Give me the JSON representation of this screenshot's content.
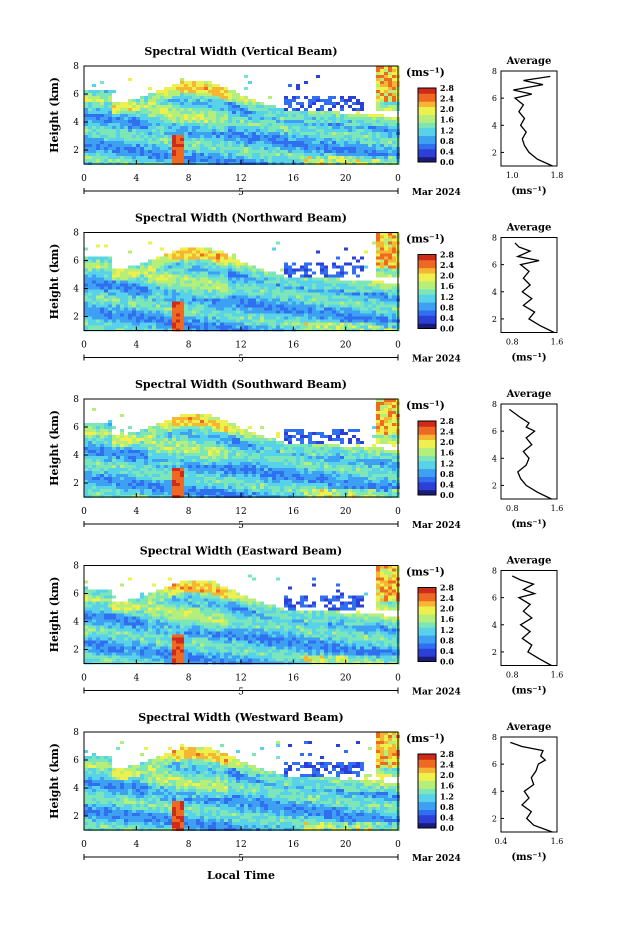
{
  "figure": {
    "xlabel": "Local Time",
    "date_label": "Mar 2024",
    "day_label": "5",
    "x_ticks": [
      "0",
      "4",
      "8",
      "12",
      "16",
      "20",
      "0"
    ],
    "colorbar_unit": "(ms⁻¹)",
    "colorbar_ticks": [
      "0.0",
      "0.4",
      "0.8",
      "1.2",
      "1.6",
      "2.0",
      "2.4",
      "2.8"
    ],
    "avg_title": "Average",
    "avg_xunit": "(ms⁻¹)",
    "colormap": [
      "#1b1b7a",
      "#2c3fd6",
      "#2f6ff0",
      "#3ea0f2",
      "#58d2e8",
      "#7de6b8",
      "#b6ee7a",
      "#eef04e",
      "#f7b534",
      "#ee6a22",
      "#cf2b1a"
    ]
  },
  "chart_data": [
    {
      "type": "heatmap",
      "title": "Spectral Width (Vertical Beam)",
      "ylabel": "Height (km)",
      "y_ticks": [
        "2",
        "4",
        "6",
        "8"
      ],
      "xlim_hours": [
        0,
        24
      ],
      "ylim_km": [
        1,
        8
      ],
      "clim": [
        0,
        2.8
      ],
      "average_profile": {
        "xlim": [
          0.8,
          1.8
        ],
        "x_ticks": [
          "1.0",
          "1.8"
        ],
        "y_ticks": [
          "2",
          "4",
          "6",
          "8"
        ],
        "height_km": [
          1.0,
          1.5,
          2.0,
          2.5,
          3.0,
          3.5,
          4.0,
          4.5,
          5.0,
          5.5,
          6.0,
          6.3,
          6.6,
          7.0,
          7.3,
          7.6
        ],
        "width": [
          1.72,
          1.45,
          1.3,
          1.22,
          1.18,
          1.25,
          1.15,
          1.22,
          1.12,
          1.2,
          1.05,
          1.35,
          1.02,
          1.55,
          1.2,
          1.68
        ]
      }
    },
    {
      "type": "heatmap",
      "title": "Spectral Width (Northward Beam)",
      "ylabel": "Height (km)",
      "y_ticks": [
        "2",
        "4",
        "6",
        "8"
      ],
      "xlim_hours": [
        0,
        24
      ],
      "ylim_km": [
        1,
        8
      ],
      "clim": [
        0,
        2.8
      ],
      "average_profile": {
        "xlim": [
          0.6,
          1.6
        ],
        "x_ticks": [
          "0.8",
          "1.6"
        ],
        "y_ticks": [
          "2",
          "4",
          "6",
          "8"
        ],
        "height_km": [
          1.0,
          1.5,
          2.0,
          2.5,
          3.0,
          3.5,
          4.0,
          4.5,
          5.0,
          5.5,
          6.0,
          6.3,
          6.6,
          7.0,
          7.3,
          7.6
        ],
        "width": [
          1.55,
          1.3,
          1.1,
          1.2,
          1.0,
          1.15,
          0.98,
          1.12,
          1.0,
          1.1,
          0.95,
          1.28,
          0.9,
          1.12,
          0.92,
          0.85
        ]
      }
    },
    {
      "type": "heatmap",
      "title": "Spectral Width (Southward Beam)",
      "ylabel": "Height (km)",
      "y_ticks": [
        "2",
        "4",
        "6",
        "8"
      ],
      "xlim_hours": [
        0,
        24
      ],
      "ylim_km": [
        1,
        8
      ],
      "clim": [
        0,
        2.8
      ],
      "average_profile": {
        "xlim": [
          0.6,
          1.6
        ],
        "x_ticks": [
          "0.8",
          "1.6"
        ],
        "y_ticks": [
          "2",
          "4",
          "6",
          "8"
        ],
        "height_km": [
          1.0,
          1.5,
          2.0,
          2.5,
          3.0,
          3.5,
          4.0,
          4.5,
          5.0,
          5.5,
          6.0,
          6.3,
          6.6,
          7.0,
          7.3,
          7.6
        ],
        "width": [
          1.5,
          1.25,
          1.05,
          0.95,
          0.9,
          1.05,
          1.1,
          1.0,
          1.15,
          1.05,
          1.2,
          1.05,
          1.1,
          0.95,
          0.85,
          0.75
        ]
      }
    },
    {
      "type": "heatmap",
      "title": "Spectral Width (Eastward Beam)",
      "ylabel": "Height (km)",
      "y_ticks": [
        "2",
        "4",
        "6",
        "8"
      ],
      "xlim_hours": [
        0,
        24
      ],
      "ylim_km": [
        1,
        8
      ],
      "clim": [
        0,
        2.8
      ],
      "average_profile": {
        "xlim": [
          0.6,
          1.6
        ],
        "x_ticks": [
          "0.8",
          "1.6"
        ],
        "y_ticks": [
          "2",
          "4",
          "6",
          "8"
        ],
        "height_km": [
          1.0,
          1.5,
          2.0,
          2.5,
          3.0,
          3.5,
          4.0,
          4.5,
          5.0,
          5.5,
          6.0,
          6.3,
          6.6,
          7.0,
          7.3,
          7.6
        ],
        "width": [
          1.5,
          1.28,
          1.08,
          1.15,
          0.98,
          1.12,
          0.95,
          1.15,
          1.0,
          1.12,
          0.92,
          1.2,
          1.0,
          1.18,
          0.95,
          0.8
        ]
      }
    },
    {
      "type": "heatmap",
      "title": "Spectral Width (Westward Beam)",
      "ylabel": "Height (km)",
      "y_ticks": [
        "2",
        "4",
        "6",
        "8"
      ],
      "xlim_hours": [
        0,
        24
      ],
      "ylim_km": [
        1,
        8
      ],
      "clim": [
        0,
        2.8
      ],
      "average_profile": {
        "xlim": [
          0.4,
          1.6
        ],
        "x_ticks": [
          "0.4",
          "1.6"
        ],
        "y_ticks": [
          "2",
          "4",
          "6",
          "8"
        ],
        "height_km": [
          1.0,
          1.5,
          2.0,
          2.5,
          3.0,
          3.5,
          4.0,
          4.5,
          5.0,
          5.5,
          6.0,
          6.3,
          6.6,
          7.0,
          7.3,
          7.6
        ],
        "width": [
          1.5,
          1.1,
          0.95,
          1.05,
          0.85,
          1.0,
          0.9,
          1.1,
          1.05,
          1.15,
          1.2,
          1.35,
          1.25,
          1.3,
          0.85,
          0.6
        ]
      }
    }
  ]
}
